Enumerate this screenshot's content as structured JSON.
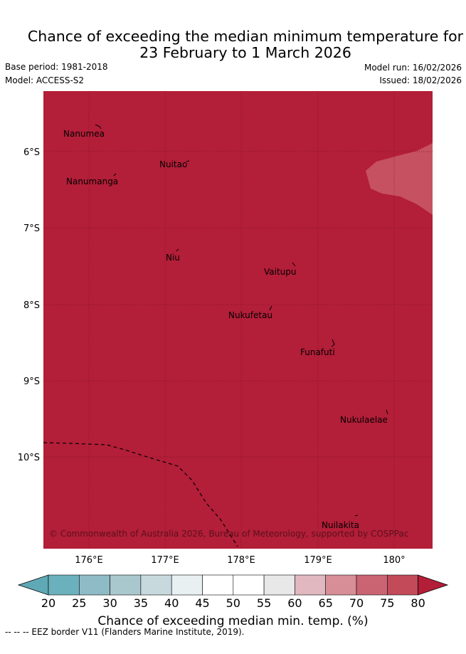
{
  "title": {
    "line1": "Chance of exceeding the median minimum temperature for",
    "line2": "23 February to 1 March 2026"
  },
  "meta": {
    "base_period": "Base period: 1981-2018",
    "model": "Model: ACCESS-S2",
    "model_run": "Model run: 16/02/2026",
    "issued": "Issued: 18/02/2026"
  },
  "map": {
    "background_color": "#b31e38",
    "lat_ticks": [
      "6°S",
      "7°S",
      "8°S",
      "9°S",
      "10°S"
    ],
    "lon_ticks": [
      "176°E",
      "177°E",
      "178°E",
      "179°E",
      "180°"
    ],
    "places": [
      "Nanumea",
      "Nuitao",
      "Nanumanga",
      "Niu",
      "Vaitupu",
      "Nukufetau",
      "Funafuti",
      "Nukulaelae",
      "Nuilakita"
    ],
    "copyright": "© Commonwealth of Australia 2026, Bureau of Meteorology, supported by COSPPac"
  },
  "colorbar": {
    "ticks": [
      "20",
      "25",
      "30",
      "35",
      "40",
      "45",
      "50",
      "55",
      "60",
      "65",
      "70",
      "75",
      "80"
    ],
    "colors": [
      "#5fa8b5",
      "#6bb0bd",
      "#8fbbc6",
      "#a9c8cd",
      "#c7d9dd",
      "#e9f0f2",
      "#ffffff",
      "#ffffff",
      "#e8e8e8",
      "#e1b8bf",
      "#d78e97",
      "#ca6472",
      "#c34a59",
      "#b31e38"
    ],
    "label": "Chance of exceeding median min. temp. (%)"
  },
  "legend_line": "--  --  -- EEZ border V11 (Flanders Marine Institute, 2019)."
}
